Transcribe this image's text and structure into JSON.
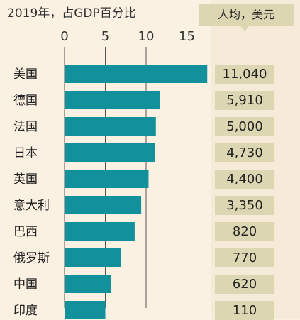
{
  "header": {
    "title_left": "2019年，占GDP百分比",
    "title_right": "人均，美元"
  },
  "colors": {
    "bar": "#12909b",
    "value_box": "#dcd6b2",
    "background": "#fbf1e3",
    "grid": "#555555"
  },
  "chart_data": {
    "type": "bar",
    "orientation": "horizontal",
    "title": "2019年，占GDP百分比",
    "categories": [
      "美国",
      "德国",
      "法国",
      "日本",
      "英国",
      "意大利",
      "巴西",
      "俄罗斯",
      "中国",
      "印度"
    ],
    "series": [
      {
        "values": [
          17.5,
          11.7,
          11.2,
          11.1,
          10.3,
          9.4,
          8.6,
          6.9,
          5.7,
          5.0
        ]
      }
    ],
    "xlim": [
      0,
      17.5
    ],
    "xticks": [
      0,
      5,
      10,
      15
    ],
    "xtick_labels": [
      "0",
      "5",
      "10",
      "15"
    ],
    "grid": true,
    "per_capita_header": "人均，美元",
    "per_capita_labels": [
      "11,040",
      "5,910",
      "5,000",
      "4,730",
      "4,400",
      "3,350",
      "820",
      "770",
      "620",
      "110"
    ]
  }
}
